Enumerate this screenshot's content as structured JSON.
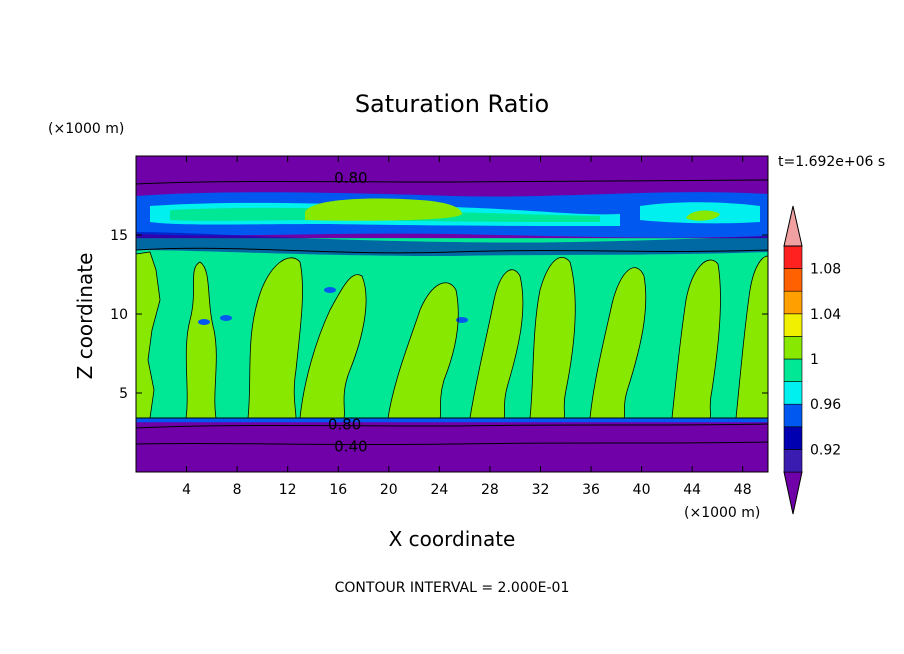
{
  "chart_data": {
    "type": "heatmap",
    "title": "Saturation Ratio",
    "xlabel": "X coordinate",
    "ylabel": "Z coordinate",
    "x_unit": "(×1000 m)",
    "y_unit": "(×1000 m)",
    "time_label": "t=1.692e+06 s",
    "footnote": "CONTOUR INTERVAL = 2.000E-01",
    "xlim": [
      0,
      50
    ],
    "ylim": [
      0,
      20
    ],
    "x_ticks": [
      "4",
      "8",
      "12",
      "16",
      "20",
      "24",
      "28",
      "32",
      "36",
      "40",
      "44",
      "48"
    ],
    "y_ticks": [
      "5",
      "10",
      "15"
    ],
    "contour_labels": [
      {
        "text": "0.80",
        "x": 17,
        "y": 18.6
      },
      {
        "text": "0.80",
        "x": 16.5,
        "y": 3.0
      },
      {
        "text": "0.40",
        "x": 17,
        "y": 1.6
      }
    ],
    "colorbar": {
      "levels": [
        "0.92",
        "0.96",
        "1",
        "1.04",
        "1.08"
      ],
      "colors": [
        "#7000a8",
        "#3a1cb0",
        "#0000b0",
        "#0058f0",
        "#00f0f0",
        "#00e896",
        "#88e800",
        "#f0f000",
        "#ffa000",
        "#ff6000",
        "#ff2020",
        "#f0a0a0"
      ]
    },
    "field_colors": {
      "dry": "#7000a8",
      "deep_blue": "#0000b0",
      "blue": "#0058f0",
      "cyan": "#00f0f0",
      "near_saturated": "#00e896",
      "saturated": "#88e800"
    }
  }
}
